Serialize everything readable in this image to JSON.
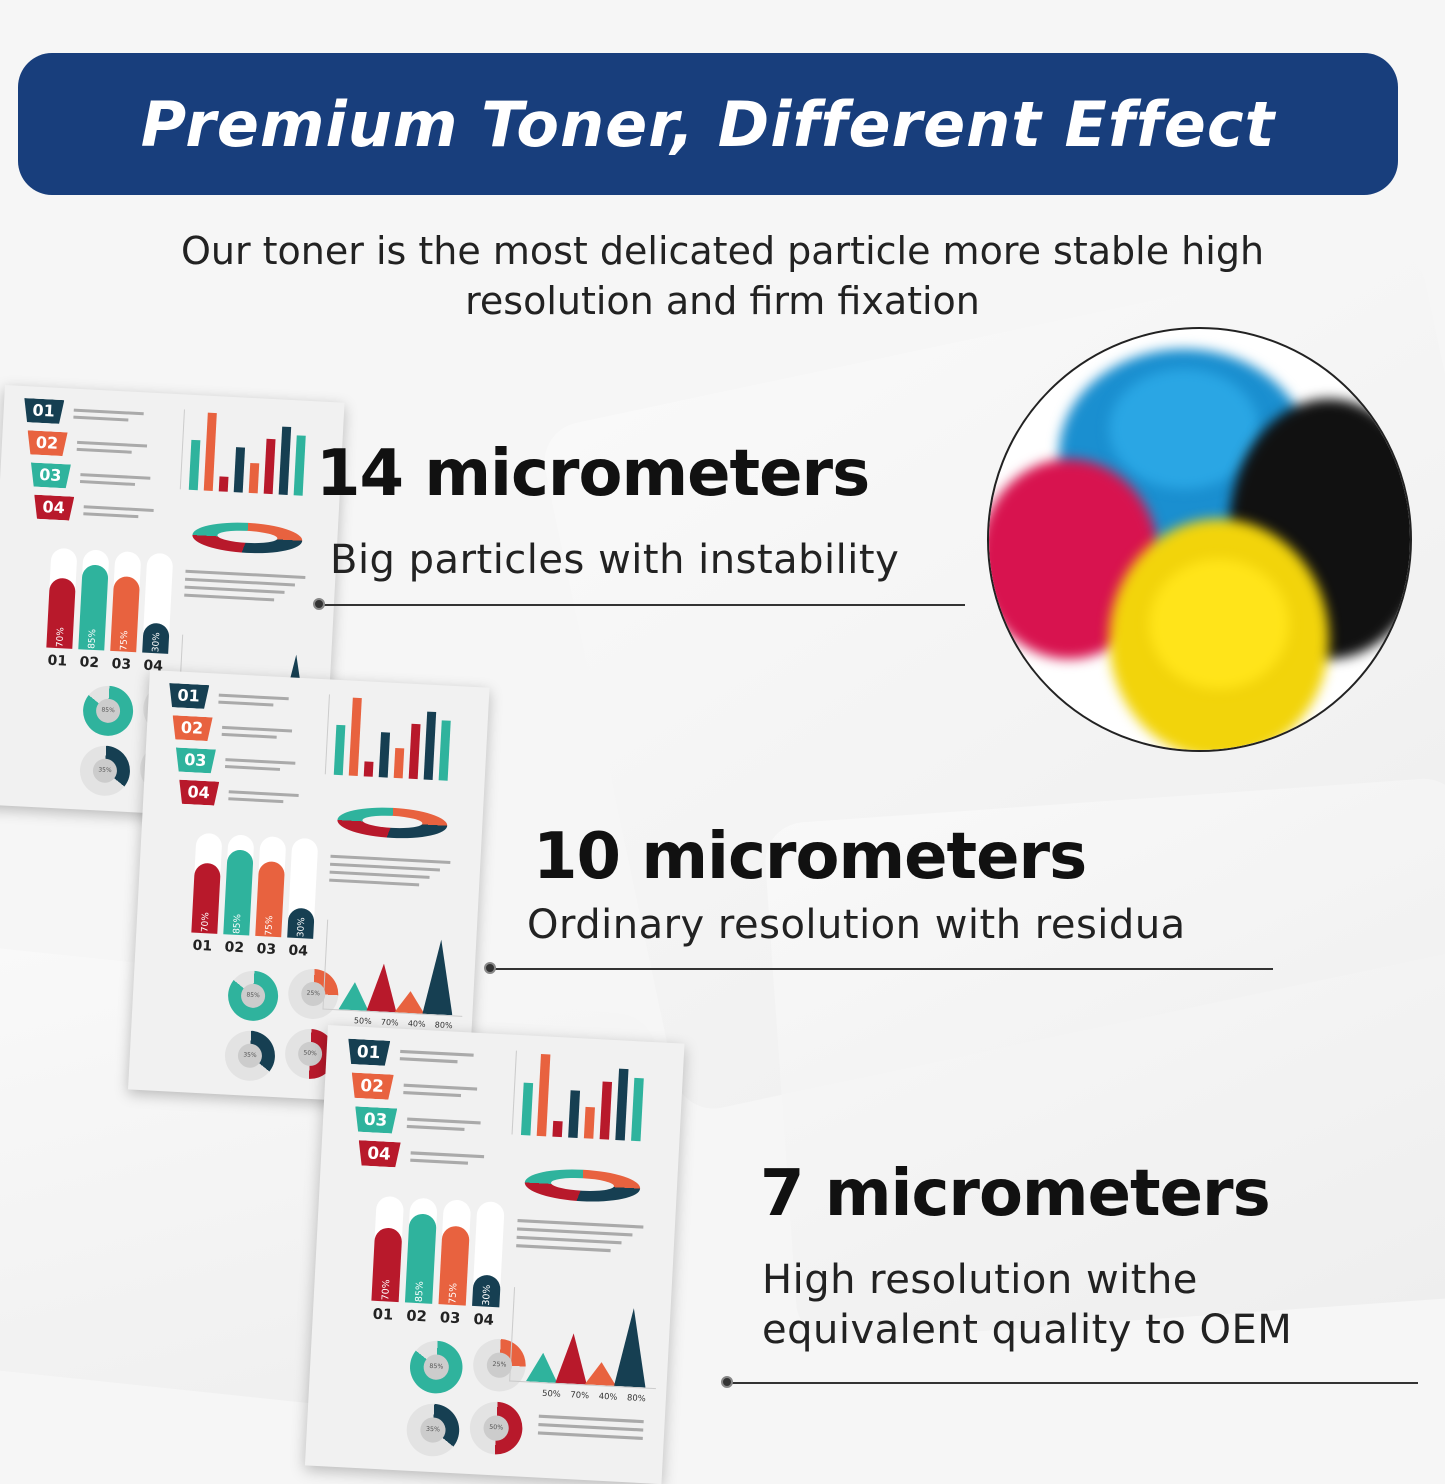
{
  "banner": {
    "title": "Premium Toner, Different Effect"
  },
  "subtitle": {
    "line1": "Our toner is the most delicated particle more stable high",
    "line2": "resolution and firm fixation"
  },
  "levels": [
    {
      "heading": "14 micrometers",
      "description": "Big particles with instability"
    },
    {
      "heading": "10 micrometers",
      "description": "Ordinary resolution with residua"
    },
    {
      "heading": "7 micrometers",
      "description": [
        "High resolution withe",
        "equivalent quality to OEM"
      ]
    }
  ],
  "sample_page": {
    "tags": [
      "01",
      "02",
      "03",
      "04"
    ],
    "bar_percents": [
      "70%",
      "85%",
      "75%",
      "30%"
    ],
    "bar_values": [
      70,
      85,
      75,
      30
    ],
    "bar_labels": [
      "01",
      "02",
      "03",
      "04"
    ],
    "triangle_percents": [
      "50%",
      "70%",
      "40%",
      "80%"
    ],
    "donut_percents": [
      "85%",
      "25%",
      "35%",
      "50%"
    ]
  },
  "colors": {
    "banner": "#183e7c",
    "navy": "#163f52",
    "orange": "#e8623f",
    "teal": "#2fb39d",
    "red": "#b8192b"
  },
  "icons": [
    "toner-powder-image"
  ]
}
